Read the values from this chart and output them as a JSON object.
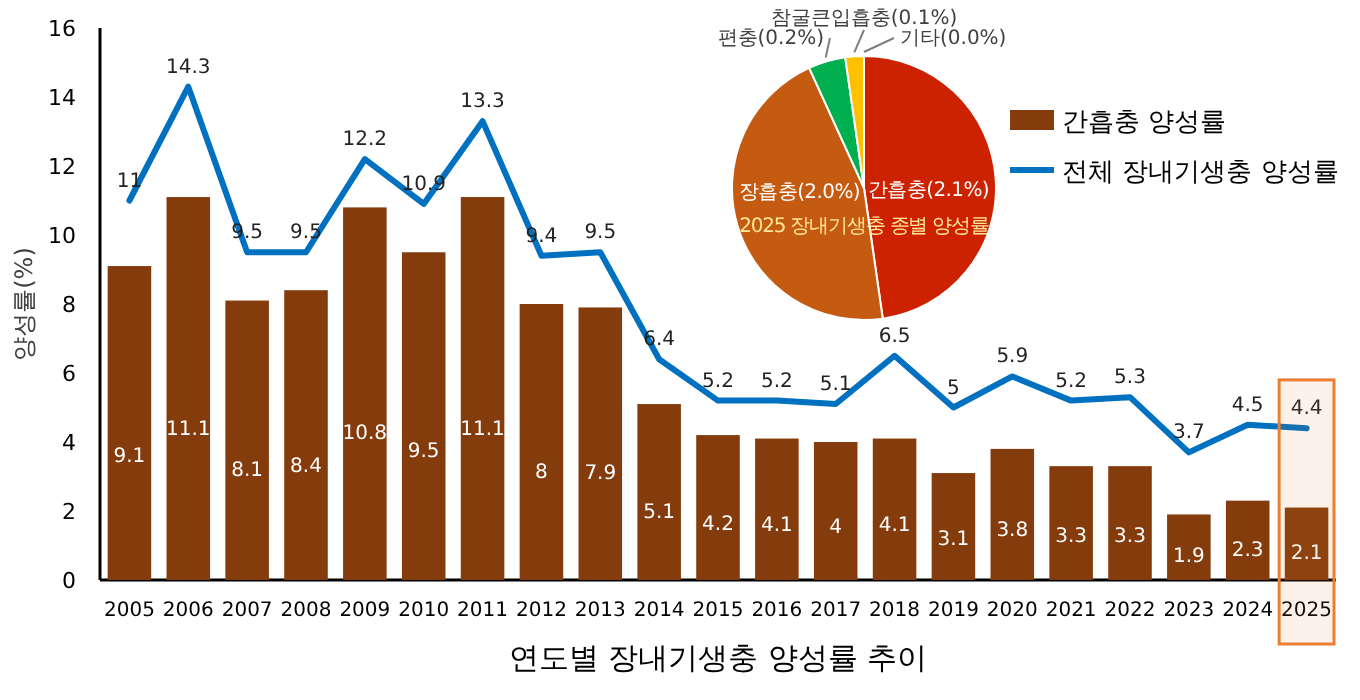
{
  "chart_data": [
    {
      "type": "bar",
      "xlabel": "연도별 장내기생충 양성률 추이",
      "ylabel": "양성률(%)",
      "categories": [
        "2005",
        "2006",
        "2007",
        "2008",
        "2009",
        "2010",
        "2011",
        "2012",
        "2013",
        "2014",
        "2015",
        "2016",
        "2017",
        "2018",
        "2019",
        "2020",
        "2021",
        "2022",
        "2023",
        "2024",
        "2025"
      ],
      "series": [
        {
          "name": "간흡충 양성률",
          "type": "bar",
          "color": "#843c0c",
          "values": [
            9.1,
            11.1,
            8.1,
            8.4,
            10.8,
            9.5,
            11.1,
            8,
            7.9,
            5.1,
            4.2,
            4.1,
            4,
            4.1,
            3.1,
            3.8,
            3.3,
            3.3,
            1.9,
            2.3,
            2.1
          ]
        },
        {
          "name": "전체 장내기생충 양성률",
          "type": "line",
          "color": "#0070c0",
          "values": [
            11,
            14.3,
            9.5,
            9.5,
            12.2,
            10.9,
            13.3,
            9.4,
            9.5,
            6.4,
            5.2,
            5.2,
            5.1,
            6.5,
            5,
            5.9,
            5.2,
            5.3,
            3.7,
            4.5,
            4.4
          ]
        }
      ],
      "ylim": [
        0,
        16
      ],
      "yticks": [
        0,
        2,
        4,
        6,
        8,
        10,
        12,
        14,
        16
      ],
      "data_labels": true,
      "grid": false,
      "legend": "top right",
      "marker": "none",
      "line_style": "solid",
      "bands": [
        {
          "axis": "x",
          "from": "2025",
          "to": "2025",
          "color": "#ed7d31"
        }
      ]
    },
    {
      "type": "pie",
      "title": "2025 장내기생충 종별 양성률",
      "categories": [
        "간흡충(2.1%)",
        "장흡충(2.0%)",
        "편충(0.2%)",
        "참굴큰입흡충(0.1%)",
        "기타(0.0%)"
      ],
      "values": [
        2.1,
        2.0,
        0.2,
        0.1,
        0.0
      ],
      "colors": [
        "#cc2200",
        "#c55a11",
        "#00b050",
        "#ffc000",
        "#7f7f7f"
      ]
    }
  ]
}
